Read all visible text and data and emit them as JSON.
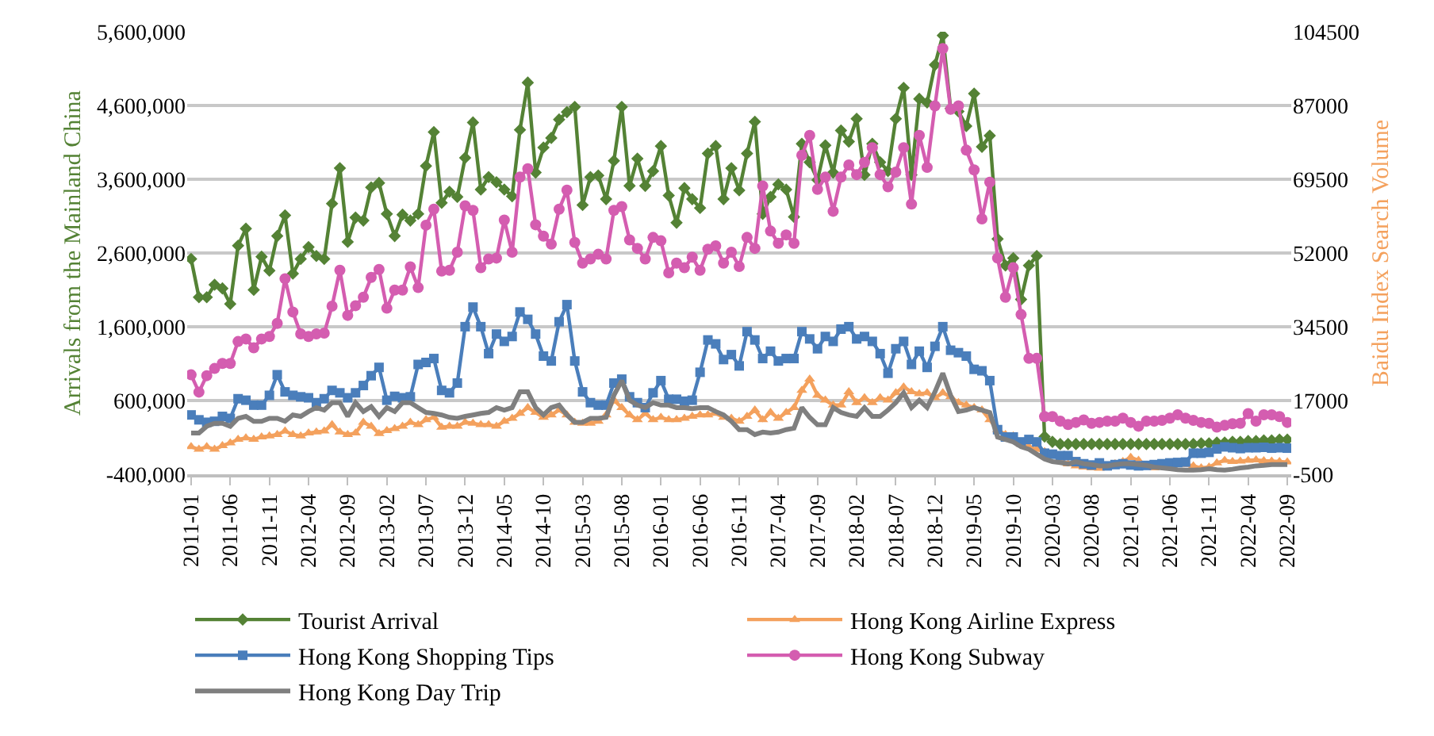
{
  "chart_data": {
    "type": "line",
    "xlabel": null,
    "ylabel": "Arrivals from the Mainland China",
    "y2label": "Baidu Index Search Volume",
    "categories": [
      "2011-01",
      null,
      null,
      null,
      null,
      "2011-06",
      null,
      null,
      null,
      null,
      "2011-11",
      null,
      null,
      null,
      null,
      "2012-04",
      null,
      null,
      null,
      null,
      "2012-09",
      null,
      null,
      null,
      null,
      "2013-02",
      null,
      null,
      null,
      null,
      "2013-07",
      null,
      null,
      null,
      null,
      "2013-12",
      null,
      null,
      null,
      null,
      "2014-05",
      null,
      null,
      null,
      null,
      "2014-10",
      null,
      null,
      null,
      null,
      "2015-03",
      null,
      null,
      null,
      null,
      "2015-08",
      null,
      null,
      null,
      null,
      "2016-01",
      null,
      null,
      null,
      null,
      "2016-06",
      null,
      null,
      null,
      null,
      "2016-11",
      null,
      null,
      null,
      null,
      "2017-04",
      null,
      null,
      null,
      null,
      "2017-09",
      null,
      null,
      null,
      null,
      "2018-02",
      null,
      null,
      null,
      null,
      "2018-07",
      null,
      null,
      null,
      null,
      "2018-12",
      null,
      null,
      null,
      null,
      "2019-05",
      null,
      null,
      null,
      null,
      "2019-10",
      null,
      null,
      null,
      null,
      "2020-03",
      null,
      null,
      null,
      null,
      "2020-08",
      null,
      null,
      null,
      null,
      "2021-01",
      null,
      null,
      null,
      null,
      "2021-06",
      null,
      null,
      null,
      null,
      "2021-11",
      null,
      null,
      null,
      null,
      "2022-04",
      null,
      null,
      null,
      null,
      "2022-09"
    ],
    "ylim": [
      -400000,
      5600000
    ],
    "yticks": [
      {
        "value": -400000,
        "label": "-400,000"
      },
      {
        "value": 600000,
        "label": "600,000"
      },
      {
        "value": 1600000,
        "label": "1,600,000"
      },
      {
        "value": 2600000,
        "label": "2,600,000"
      },
      {
        "value": 3600000,
        "label": "3,600,000"
      },
      {
        "value": 4600000,
        "label": "4,600,000"
      },
      {
        "value": 5600000,
        "label": "5,600,000"
      }
    ],
    "y2lim": [
      -500,
      104500
    ],
    "y2ticks": [
      -500,
      17000,
      34500,
      52000,
      69500,
      87000,
      104500
    ],
    "grid": "y",
    "legend": "bottom",
    "line_style": "solid",
    "series": [
      {
        "name": "Tourist Arrival",
        "color": "#548235",
        "marker": "diamond",
        "values": [
          2520000,
          2000000,
          2000000,
          2170000,
          2120000,
          1910000,
          2700000,
          2930000,
          2100000,
          2550000,
          2360000,
          2830000,
          3110000,
          2320000,
          2520000,
          2680000,
          2560000,
          2520000,
          3270000,
          3750000,
          2750000,
          3080000,
          3040000,
          3490000,
          3550000,
          3130000,
          2830000,
          3120000,
          3040000,
          3130000,
          3780000,
          4240000,
          3280000,
          3430000,
          3360000,
          3890000,
          4370000,
          3460000,
          3630000,
          3560000,
          3460000,
          3370000,
          4270000,
          4910000,
          3690000,
          4030000,
          4160000,
          4410000,
          4510000,
          4580000,
          3250000,
          3630000,
          3650000,
          3330000,
          3850000,
          4580000,
          3510000,
          3880000,
          3510000,
          3710000,
          4050000,
          3380000,
          3010000,
          3480000,
          3330000,
          3210000,
          3950000,
          4050000,
          3330000,
          3750000,
          3450000,
          3950000,
          4380000,
          3130000,
          3360000,
          3530000,
          3460000,
          3090000,
          4080000,
          3830000,
          3590000,
          4060000,
          3690000,
          4260000,
          4110000,
          4420000,
          3660000,
          4080000,
          3830000,
          3710000,
          4420000,
          4840000,
          3660000,
          4690000,
          4640000,
          5150000,
          5550000,
          4560000,
          4520000,
          4320000,
          4760000,
          4040000,
          4190000,
          2790000,
          2430000,
          2530000,
          1970000,
          2430000,
          2560000,
          110000,
          40000,
          10000,
          10000,
          10000,
          10000,
          10000,
          10000,
          10000,
          10000,
          10000,
          10000,
          10000,
          10000,
          10000,
          10000,
          10000,
          10000,
          10000,
          10000,
          20000,
          20000,
          30000,
          30000,
          40000,
          40000,
          50000,
          50000,
          60000,
          60000,
          70000,
          70000
        ]
      },
      {
        "name": "Hong Kong Airline Express",
        "color": "#f4a15d",
        "marker": "triangle",
        "axis": "y2",
        "values": [
          6020,
          5430,
          6020,
          5430,
          6250,
          6950,
          7760,
          8110,
          7760,
          8340,
          8580,
          8920,
          9740,
          8920,
          8580,
          9270,
          9510,
          9740,
          11250,
          9510,
          8920,
          9270,
          11830,
          10900,
          9160,
          9860,
          10320,
          10900,
          11830,
          11250,
          12420,
          13000,
          10670,
          10900,
          10900,
          11830,
          11600,
          11250,
          11250,
          10900,
          12070,
          12770,
          13930,
          15320,
          14160,
          13000,
          13580,
          14740,
          13580,
          11830,
          11600,
          11600,
          12070,
          13580,
          17070,
          15320,
          13580,
          12420,
          13930,
          12420,
          13000,
          12420,
          12420,
          12770,
          13230,
          13580,
          13580,
          13930,
          13000,
          12770,
          12070,
          13230,
          14740,
          12420,
          14160,
          12770,
          14160,
          15320,
          19400,
          22070,
          18230,
          17070,
          15910,
          15910,
          19050,
          16490,
          17650,
          16490,
          17650,
          17070,
          18820,
          20210,
          19050,
          18580,
          18820,
          17650,
          18820,
          17880,
          16490,
          15910,
          15320,
          14740,
          12420,
          10090,
          8920,
          8580,
          6600,
          6020,
          5430,
          4850,
          4270,
          3100,
          1940,
          1500,
          1200,
          1000,
          900,
          1300,
          2000,
          2500,
          3500,
          2800,
          1600,
          1000,
          1200,
          1500,
          2000,
          1800,
          1500,
          1000,
          1200,
          2200,
          2800,
          2500,
          2600,
          2800,
          2900,
          2700,
          2600,
          2500,
          2400
        ]
      },
      {
        "name": "Hong Kong Shopping Tips",
        "color": "#4a7ebb",
        "marker": "square",
        "axis": "y2",
        "values": [
          13580,
          12420,
          11830,
          12070,
          13230,
          12770,
          17420,
          17070,
          15910,
          15910,
          18230,
          23120,
          19050,
          18230,
          17880,
          17650,
          16490,
          17420,
          19400,
          18820,
          17650,
          18820,
          20560,
          22890,
          24860,
          17070,
          17990,
          17650,
          17880,
          25560,
          26030,
          26960,
          19400,
          18820,
          21140,
          34520,
          39170,
          34520,
          28120,
          32770,
          31030,
          32190,
          38010,
          36260,
          32770,
          27540,
          26380,
          35680,
          39750,
          26380,
          19050,
          16490,
          15910,
          15910,
          21140,
          22070,
          17880,
          16490,
          15320,
          18820,
          21720,
          17300,
          17300,
          16840,
          17070,
          23700,
          31370,
          30440,
          26720,
          27890,
          25210,
          33350,
          31370,
          26960,
          28700,
          26380,
          26960,
          26960,
          33350,
          31610,
          29280,
          32190,
          31030,
          33940,
          34520,
          31610,
          32190,
          31030,
          28120,
          23470,
          29280,
          31030,
          25560,
          28700,
          24860,
          29860,
          34520,
          28930,
          28350,
          27540,
          24400,
          24050,
          21720,
          10090,
          8340,
          8340,
          7180,
          7760,
          7180,
          4500,
          4270,
          3920,
          3920,
          2500,
          2000,
          1700,
          2200,
          1500,
          1800,
          2000,
          1700,
          1500,
          1600,
          1800,
          2000,
          2200,
          2300,
          2400,
          4500,
          4500,
          4700,
          5500,
          6000,
          5800,
          5600,
          5800,
          5800,
          5900,
          5700,
          5800,
          5700
        ]
      },
      {
        "name": "Hong Kong Subway",
        "color": "#d45db0",
        "marker": "circle",
        "axis": "y2",
        "values": [
          23100,
          19000,
          22900,
          24600,
          25800,
          25800,
          31000,
          31600,
          29500,
          31600,
          32200,
          35300,
          45900,
          38000,
          32800,
          32200,
          32800,
          33000,
          39400,
          47900,
          37200,
          39500,
          41500,
          46200,
          48100,
          38900,
          43200,
          43200,
          48700,
          43800,
          58600,
          62400,
          47700,
          47900,
          52200,
          63200,
          62100,
          48500,
          50600,
          50800,
          59800,
          52200,
          70000,
          72000,
          58700,
          56000,
          54100,
          62400,
          66900,
          54500,
          49600,
          50600,
          51700,
          50600,
          62100,
          63000,
          55100,
          53100,
          50600,
          55700,
          54900,
          47300,
          49600,
          48500,
          51000,
          47900,
          52900,
          53700,
          49600,
          52200,
          48800,
          55700,
          53100,
          67900,
          57200,
          54300,
          56300,
          54300,
          75200,
          79900,
          67100,
          70000,
          61900,
          70000,
          72900,
          70600,
          73500,
          77000,
          70600,
          67700,
          71200,
          77000,
          63600,
          79900,
          72300,
          86900,
          100500,
          86100,
          86900,
          76400,
          71700,
          60100,
          68800,
          50800,
          41500,
          48500,
          37400,
          27000,
          27000,
          13200,
          13200,
          12100,
          11300,
          11800,
          12400,
          11600,
          11800,
          12100,
          12100,
          12800,
          11800,
          10900,
          12100,
          12100,
          12300,
          12800,
          13600,
          12800,
          12300,
          11800,
          11600,
          10700,
          11100,
          11500,
          11600,
          13900,
          12100,
          13600,
          13600,
          13200,
          11800
        ]
      },
      {
        "name": "Hong Kong Day Trip",
        "color": "#7f7f7f",
        "marker": "none",
        "axis": "y2",
        "values": [
          9270,
          9270,
          10900,
          11600,
          11600,
          10900,
          12770,
          13230,
          12070,
          12070,
          12770,
          12770,
          12070,
          13580,
          13230,
          14390,
          15320,
          14740,
          16490,
          16490,
          13230,
          16490,
          14390,
          15550,
          13230,
          15320,
          14390,
          16490,
          16490,
          15320,
          14160,
          13930,
          13580,
          13000,
          12770,
          13230,
          13580,
          13930,
          14160,
          15320,
          14740,
          15320,
          19050,
          19050,
          15320,
          13580,
          15320,
          15910,
          13580,
          11830,
          11830,
          12770,
          12770,
          13000,
          18230,
          21720,
          17070,
          15910,
          15320,
          16490,
          15910,
          15910,
          15320,
          15320,
          15090,
          15320,
          15320,
          14390,
          13580,
          12070,
          10090,
          10090,
          8920,
          9510,
          9270,
          9510,
          10090,
          10440,
          15320,
          13000,
          11250,
          11250,
          15320,
          14160,
          13580,
          13230,
          15320,
          13230,
          13230,
          14740,
          16490,
          18820,
          15320,
          17070,
          15320,
          19050,
          23470,
          18230,
          14390,
          14740,
          15320,
          14740,
          14160,
          8340,
          7760,
          7180,
          6020,
          5430,
          4270,
          3100,
          2520,
          2290,
          1940,
          2500,
          2000,
          1800,
          1500,
          1500,
          1800,
          2000,
          2000,
          1800,
          1600,
          1200,
          1000,
          800,
          600,
          500,
          500,
          600,
          800,
          600,
          500,
          700,
          1000,
          1200,
          1500,
          1600,
          1800,
          1800,
          1800
        ]
      }
    ]
  }
}
